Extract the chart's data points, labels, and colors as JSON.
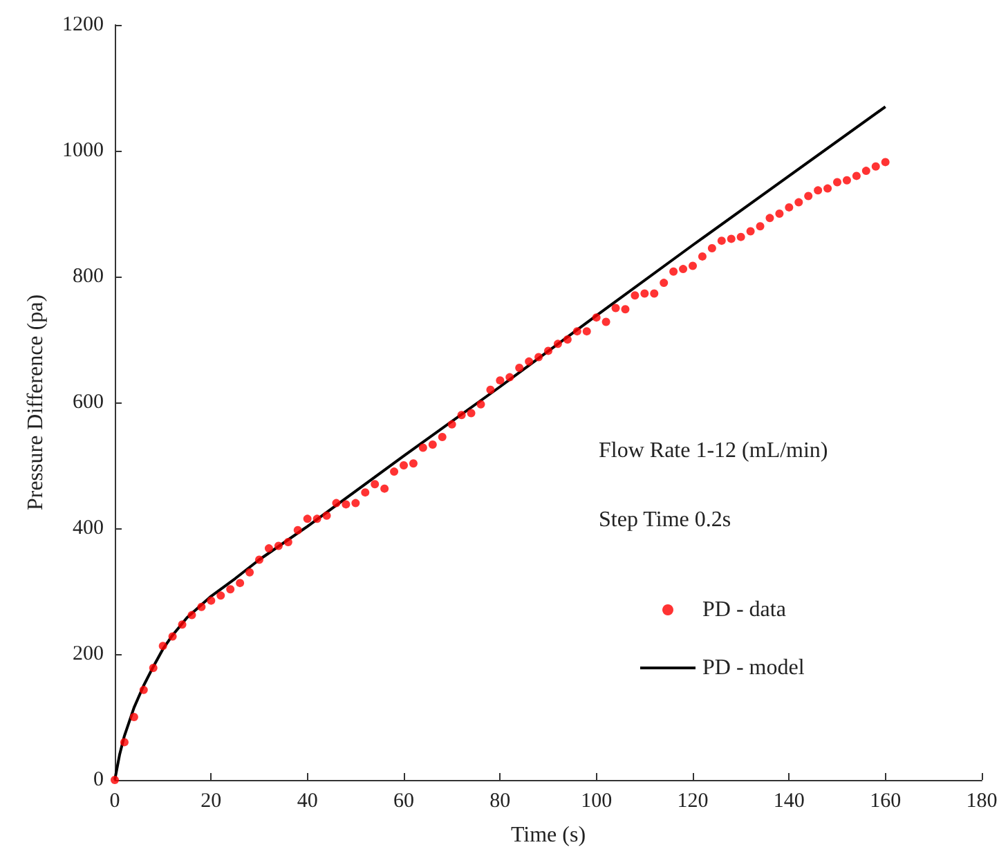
{
  "chart_data": {
    "type": "scatter",
    "xlabel": "Time (s)",
    "ylabel": "Pressure Difference (pa)",
    "annotations": [
      "Flow Rate 1-12 (mL/min)",
      "Step Time 0.2s"
    ],
    "xlim": [
      0,
      180
    ],
    "xticks": [
      0,
      20,
      40,
      60,
      80,
      100,
      120,
      140,
      160,
      180
    ],
    "ylim": [
      0,
      1200
    ],
    "yticks": [
      0,
      200,
      400,
      600,
      800,
      1000,
      1200
    ],
    "grid": false,
    "legend": "right",
    "marker": "circle",
    "series": [
      {
        "name": "PD - data",
        "color": "#ff0000",
        "x": [
          0,
          2,
          4,
          6,
          8,
          10,
          12,
          14,
          16,
          18,
          20,
          22,
          24,
          26,
          28,
          30,
          32,
          34,
          36,
          38,
          40,
          42,
          44,
          46,
          48,
          50,
          52,
          54,
          56,
          58,
          60,
          62,
          64,
          66,
          68,
          70,
          72,
          74,
          76,
          78,
          80,
          82,
          84,
          86,
          88,
          90,
          92,
          94,
          96,
          98,
          100,
          102,
          104,
          106,
          108,
          110,
          112,
          114,
          116,
          118,
          120,
          122,
          124,
          126,
          128,
          130,
          132,
          134,
          136,
          138,
          140,
          142,
          144,
          146,
          148,
          150,
          152,
          154,
          156,
          158,
          160
        ],
        "values": [
          0,
          60,
          100,
          143,
          178,
          213,
          228,
          247,
          262,
          275,
          285,
          293,
          303,
          313,
          330,
          350,
          368,
          372,
          378,
          397,
          415,
          415,
          420,
          440,
          438,
          440,
          457,
          470,
          463,
          490,
          500,
          503,
          528,
          533,
          545,
          565,
          580,
          583,
          597,
          620,
          635,
          640,
          655,
          665,
          672,
          682,
          693,
          700,
          713,
          713,
          735,
          728,
          750,
          748,
          770,
          773,
          773,
          790,
          808,
          812,
          817,
          832,
          845,
          857,
          860,
          863,
          872,
          880,
          893,
          900,
          910,
          918,
          928,
          937,
          940,
          950,
          953,
          960,
          968,
          975,
          982
        ]
      },
      {
        "name": "PD - model",
        "type": "line",
        "color": "#000000",
        "marker": "none",
        "line_style": "solid",
        "x": [
          0,
          1,
          2,
          4,
          6,
          8,
          10,
          12,
          15,
          20,
          25,
          30,
          40,
          60,
          80,
          100,
          120,
          140,
          160
        ],
        "values": [
          0,
          40,
          70,
          115,
          150,
          180,
          208,
          230,
          258,
          292,
          320,
          350,
          403,
          515,
          625,
          738,
          850,
          960,
          1070
        ]
      }
    ]
  }
}
